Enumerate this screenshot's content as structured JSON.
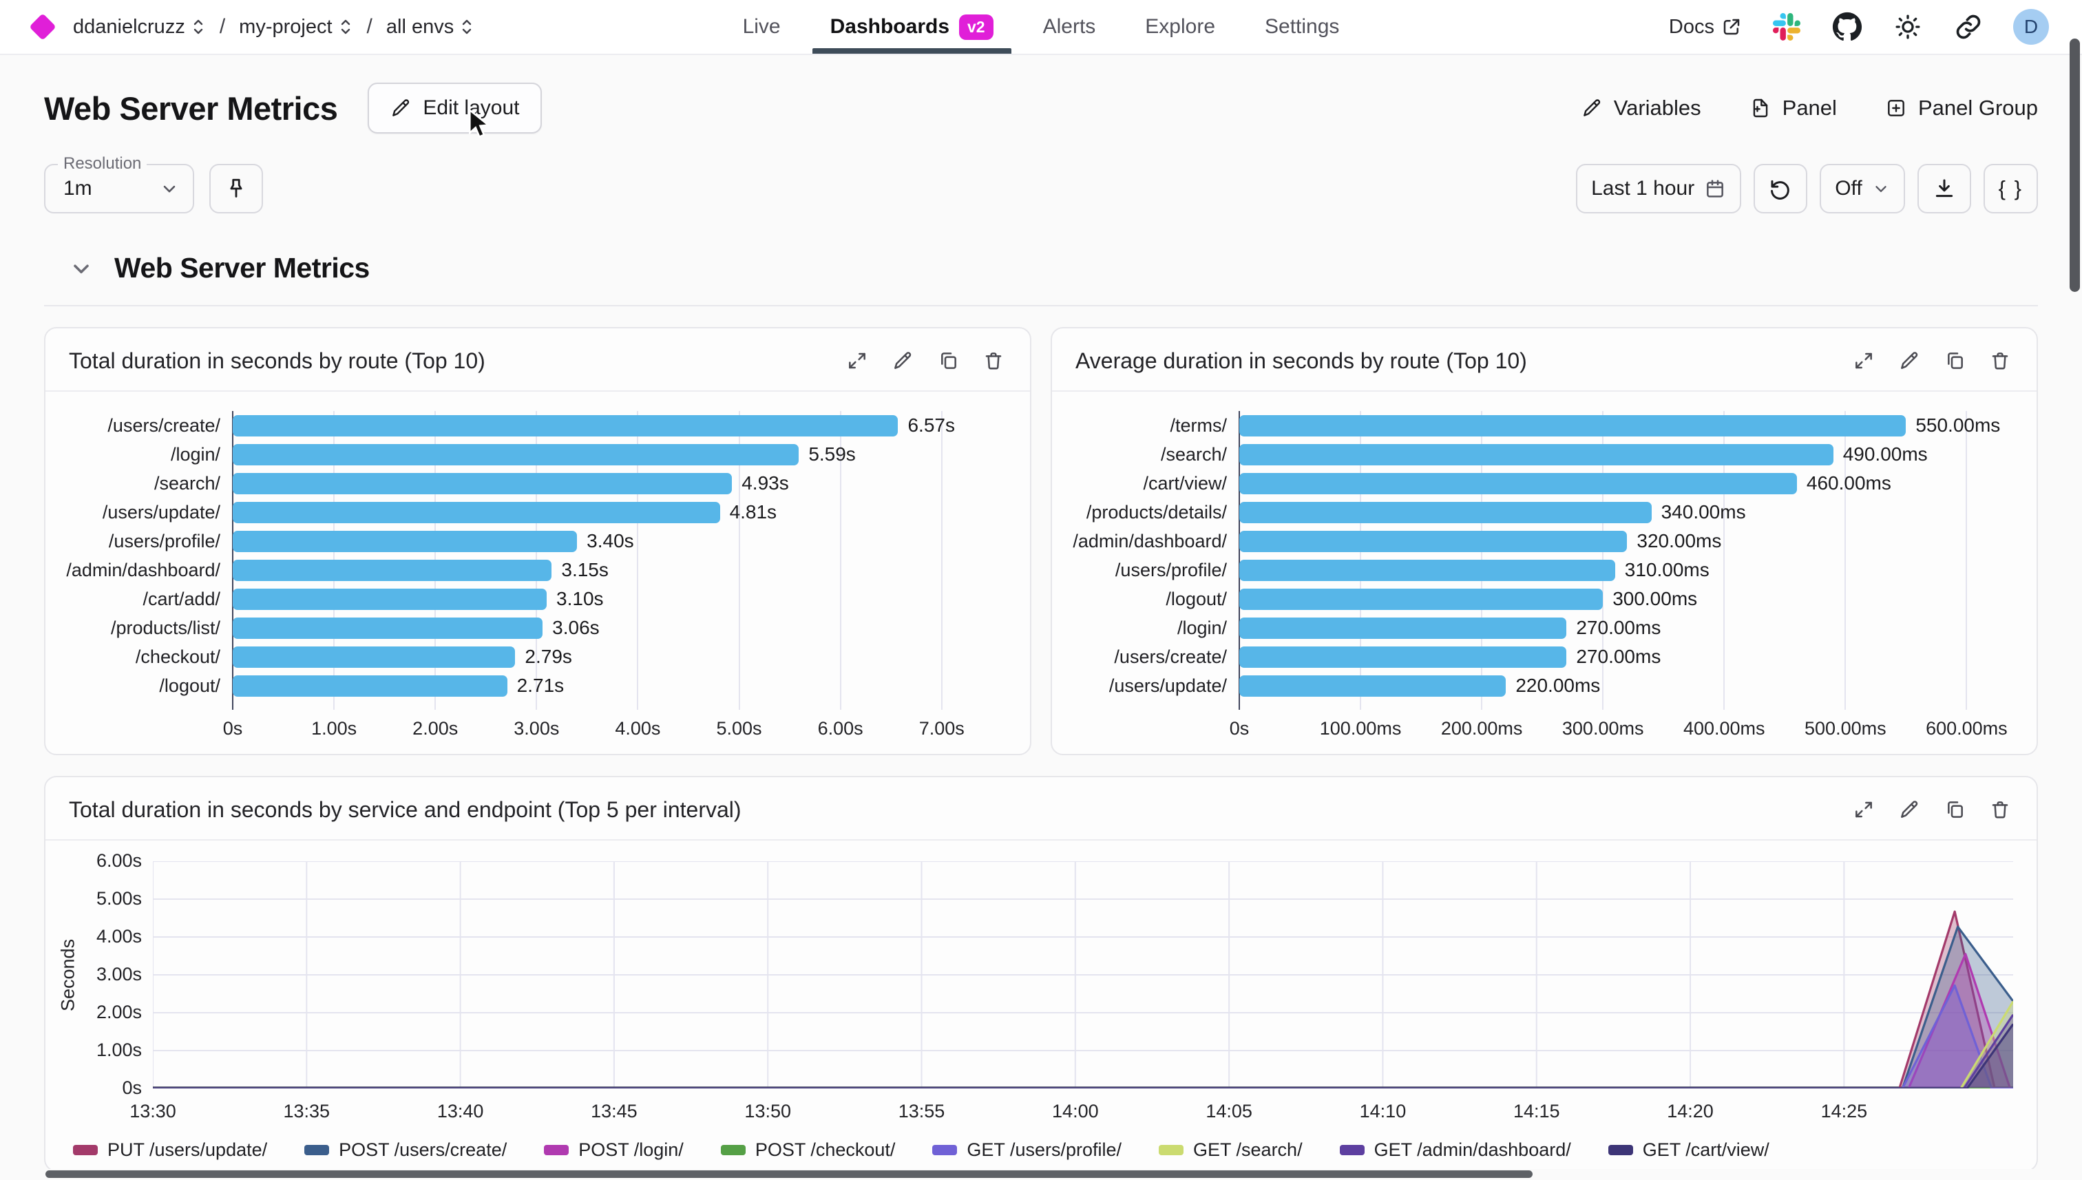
{
  "header": {
    "org": "ddanielcruzz",
    "project": "my-project",
    "env": "all envs",
    "nav": [
      {
        "label": "Live",
        "active": false
      },
      {
        "label": "Dashboards",
        "active": true,
        "badge": "v2"
      },
      {
        "label": "Alerts",
        "active": false
      },
      {
        "label": "Explore",
        "active": false
      },
      {
        "label": "Settings",
        "active": false
      }
    ],
    "docs_label": "Docs",
    "avatar_initial": "D"
  },
  "toolbar": {
    "title": "Web Server Metrics",
    "edit_layout_label": "Edit layout",
    "variables_label": "Variables",
    "panel_label": "Panel",
    "panel_group_label": "Panel Group"
  },
  "controls": {
    "resolution_label": "Resolution",
    "resolution_value": "1m",
    "time_range_value": "Last 1 hour",
    "refresh_value": "Off",
    "code_button_label": "{ }"
  },
  "section_title": "Web Server Metrics",
  "colors": {
    "accent_magenta": "#e01fd8",
    "bar_blue": "#57b6e8",
    "nav_underline": "#3e4c59",
    "avatar_blue": "#a5cdf2",
    "gridline": "#e4e4ef",
    "axis_dark": "#3f455c"
  },
  "chart_data": [
    {
      "type": "bar",
      "orientation": "horizontal",
      "title": "Total duration in seconds by route (Top 10)",
      "categories": [
        "/users/create/",
        "/login/",
        "/search/",
        "/users/update/",
        "/users/profile/",
        "/admin/dashboard/",
        "/cart/add/",
        "/products/list/",
        "/checkout/",
        "/logout/"
      ],
      "values": [
        6.57,
        5.59,
        4.93,
        4.81,
        3.4,
        3.15,
        3.1,
        3.06,
        2.79,
        2.71
      ],
      "value_labels": [
        "6.57s",
        "5.59s",
        "4.93s",
        "4.81s",
        "3.40s",
        "3.15s",
        "3.10s",
        "3.06s",
        "2.79s",
        "2.71s"
      ],
      "x_ticks": [
        {
          "label": "0s",
          "value": 0
        },
        {
          "label": "1.00s",
          "value": 1
        },
        {
          "label": "2.00s",
          "value": 2
        },
        {
          "label": "3.00s",
          "value": 3
        },
        {
          "label": "4.00s",
          "value": 4
        },
        {
          "label": "5.00s",
          "value": 5
        },
        {
          "label": "6.00s",
          "value": 6
        },
        {
          "label": "7.00s",
          "value": 7
        }
      ],
      "xmax": 7.6,
      "bar_color": "#57b6e8",
      "grid": true
    },
    {
      "type": "bar",
      "orientation": "horizontal",
      "title": "Average duration in seconds by route (Top 10)",
      "categories": [
        "/terms/",
        "/search/",
        "/cart/view/",
        "/products/details/",
        "/admin/dashboard/",
        "/users/profile/",
        "/logout/",
        "/login/",
        "/users/create/",
        "/users/update/"
      ],
      "values": [
        550,
        490,
        460,
        340,
        320,
        310,
        300,
        270,
        270,
        220
      ],
      "value_labels": [
        "550.00ms",
        "490.00ms",
        "460.00ms",
        "340.00ms",
        "320.00ms",
        "310.00ms",
        "300.00ms",
        "270.00ms",
        "270.00ms",
        "220.00ms"
      ],
      "x_ticks": [
        {
          "label": "0s",
          "value": 0
        },
        {
          "label": "100.00ms",
          "value": 100
        },
        {
          "label": "200.00ms",
          "value": 200
        },
        {
          "label": "300.00ms",
          "value": 300
        },
        {
          "label": "400.00ms",
          "value": 400
        },
        {
          "label": "500.00ms",
          "value": 500
        },
        {
          "label": "600.00ms",
          "value": 600
        }
      ],
      "xmax": 635,
      "bar_color": "#57b6e8",
      "grid": true
    },
    {
      "type": "area",
      "title": "Total duration in seconds by service and endpoint (Top 5 per interval)",
      "ylabel": "Seconds",
      "ymax": 6,
      "y_ticks": [
        {
          "label": "6.00s",
          "value": 6
        },
        {
          "label": "5.00s",
          "value": 5
        },
        {
          "label": "4.00s",
          "value": 4
        },
        {
          "label": "3.00s",
          "value": 3
        },
        {
          "label": "2.00s",
          "value": 2
        },
        {
          "label": "1.00s",
          "value": 1
        },
        {
          "label": "0s",
          "value": 0
        }
      ],
      "x_ticks": [
        {
          "label": "13:30",
          "minute": 0
        },
        {
          "label": "13:35",
          "minute": 5
        },
        {
          "label": "13:40",
          "minute": 10
        },
        {
          "label": "13:45",
          "minute": 15
        },
        {
          "label": "13:50",
          "minute": 20
        },
        {
          "label": "13:55",
          "minute": 25
        },
        {
          "label": "14:00",
          "minute": 30
        },
        {
          "label": "14:05",
          "minute": 35
        },
        {
          "label": "14:10",
          "minute": 40
        },
        {
          "label": "14:15",
          "minute": 45
        },
        {
          "label": "14:20",
          "minute": 50
        },
        {
          "label": "14:25",
          "minute": 55
        }
      ],
      "xmax_minutes": 60.5,
      "grid": true,
      "legend_position": "bottom",
      "series": [
        {
          "name": "PUT /users/update/",
          "color": "#a33a6a",
          "points": [
            [
              0,
              0
            ],
            [
              56.8,
              0
            ],
            [
              58.6,
              4.67
            ],
            [
              59.9,
              0
            ],
            [
              60.5,
              0
            ]
          ]
        },
        {
          "name": "POST /users/create/",
          "color": "#3b5e8c",
          "points": [
            [
              0,
              0
            ],
            [
              56.9,
              0
            ],
            [
              58.7,
              4.27
            ],
            [
              60.5,
              2.3
            ]
          ]
        },
        {
          "name": "POST /login/",
          "color": "#b03ab0",
          "points": [
            [
              0,
              0
            ],
            [
              57.1,
              0
            ],
            [
              58.95,
              3.55
            ],
            [
              60.4,
              0
            ],
            [
              60.5,
              0
            ]
          ]
        },
        {
          "name": "POST /checkout/",
          "color": "#55a046",
          "points": [
            [
              0,
              0
            ],
            [
              60.5,
              0
            ]
          ]
        },
        {
          "name": "GET /users/profile/",
          "color": "#7061d6",
          "points": [
            [
              0,
              0
            ],
            [
              56.9,
              0
            ],
            [
              58.6,
              2.72
            ],
            [
              59.8,
              0
            ],
            [
              60.5,
              0
            ]
          ]
        },
        {
          "name": "GET /search/",
          "color": "#cbdb70",
          "points": [
            [
              0,
              0
            ],
            [
              58.8,
              0
            ],
            [
              60.5,
              2.3
            ]
          ]
        },
        {
          "name": "GET /admin/dashboard/",
          "color": "#5d3fa0",
          "points": [
            [
              0,
              0
            ],
            [
              58.9,
              0
            ],
            [
              60.5,
              1.95
            ]
          ]
        },
        {
          "name": "GET /cart/view/",
          "color": "#3d3577",
          "points": [
            [
              0,
              0
            ],
            [
              59.0,
              0
            ],
            [
              60.5,
              1.7
            ]
          ]
        }
      ]
    }
  ]
}
